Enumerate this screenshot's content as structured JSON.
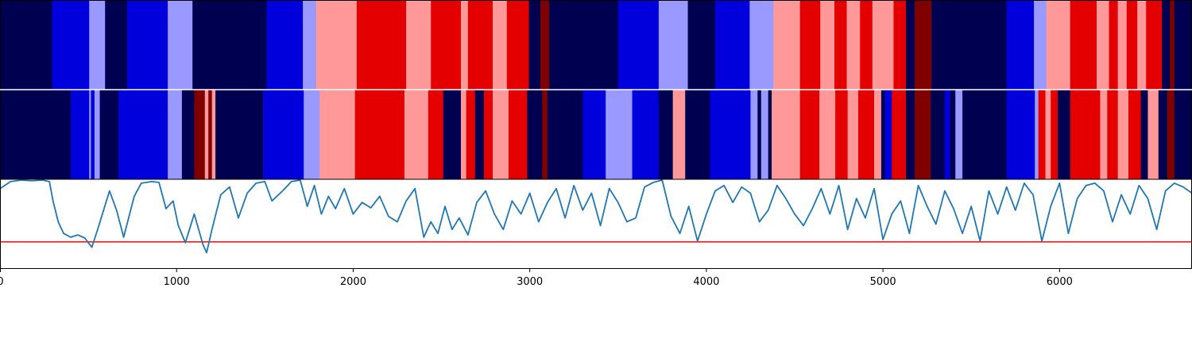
{
  "chart_data": [
    {
      "panel": "top-segmentation",
      "type": "heatmap",
      "x_range": [
        0,
        6750
      ],
      "palette": [
        "#000050",
        "#0000dd",
        "#9999ff",
        "#ff9999",
        "#e50000",
        "#800000"
      ],
      "segments": [
        {
          "x0": 0,
          "x1": 295,
          "state": 0
        },
        {
          "x0": 295,
          "x1": 505,
          "state": 1
        },
        {
          "x0": 505,
          "x1": 595,
          "state": 2
        },
        {
          "x0": 595,
          "x1": 720,
          "state": 0
        },
        {
          "x0": 720,
          "x1": 950,
          "state": 1
        },
        {
          "x0": 950,
          "x1": 1090,
          "state": 2
        },
        {
          "x0": 1090,
          "x1": 1510,
          "state": 0
        },
        {
          "x0": 1510,
          "x1": 1715,
          "state": 1
        },
        {
          "x0": 1715,
          "x1": 1790,
          "state": 2
        },
        {
          "x0": 1790,
          "x1": 2020,
          "state": 3
        },
        {
          "x0": 2020,
          "x1": 2300,
          "state": 4
        },
        {
          "x0": 2300,
          "x1": 2440,
          "state": 3
        },
        {
          "x0": 2440,
          "x1": 2610,
          "state": 4
        },
        {
          "x0": 2610,
          "x1": 2650,
          "state": 3
        },
        {
          "x0": 2650,
          "x1": 2790,
          "state": 4
        },
        {
          "x0": 2790,
          "x1": 2870,
          "state": 3
        },
        {
          "x0": 2870,
          "x1": 2995,
          "state": 4
        },
        {
          "x0": 2995,
          "x1": 3060,
          "state": 0
        },
        {
          "x0": 3060,
          "x1": 3110,
          "state": 5
        },
        {
          "x0": 3110,
          "x1": 3500,
          "state": 0
        },
        {
          "x0": 3500,
          "x1": 3730,
          "state": 1
        },
        {
          "x0": 3730,
          "x1": 3895,
          "state": 2
        },
        {
          "x0": 3895,
          "x1": 4050,
          "state": 0
        },
        {
          "x0": 4050,
          "x1": 4245,
          "state": 1
        },
        {
          "x0": 4245,
          "x1": 4380,
          "state": 2
        },
        {
          "x0": 4380,
          "x1": 4530,
          "state": 3
        },
        {
          "x0": 4530,
          "x1": 4645,
          "state": 4
        },
        {
          "x0": 4645,
          "x1": 4725,
          "state": 3
        },
        {
          "x0": 4725,
          "x1": 4795,
          "state": 4
        },
        {
          "x0": 4795,
          "x1": 4870,
          "state": 3
        },
        {
          "x0": 4870,
          "x1": 4940,
          "state": 4
        },
        {
          "x0": 4940,
          "x1": 5060,
          "state": 3
        },
        {
          "x0": 5060,
          "x1": 5130,
          "state": 4
        },
        {
          "x0": 5130,
          "x1": 5180,
          "state": 0
        },
        {
          "x0": 5180,
          "x1": 5275,
          "state": 5
        },
        {
          "x0": 5275,
          "x1": 5700,
          "state": 0
        },
        {
          "x0": 5700,
          "x1": 5855,
          "state": 1
        },
        {
          "x0": 5855,
          "x1": 5925,
          "state": 2
        },
        {
          "x0": 5925,
          "x1": 6060,
          "state": 3
        },
        {
          "x0": 6060,
          "x1": 6210,
          "state": 4
        },
        {
          "x0": 6210,
          "x1": 6280,
          "state": 3
        },
        {
          "x0": 6280,
          "x1": 6330,
          "state": 4
        },
        {
          "x0": 6330,
          "x1": 6380,
          "state": 3
        },
        {
          "x0": 6380,
          "x1": 6440,
          "state": 4
        },
        {
          "x0": 6440,
          "x1": 6490,
          "state": 3
        },
        {
          "x0": 6490,
          "x1": 6580,
          "state": 4
        },
        {
          "x0": 6580,
          "x1": 6625,
          "state": 0
        },
        {
          "x0": 6625,
          "x1": 6650,
          "state": 5
        },
        {
          "x0": 6650,
          "x1": 6750,
          "state": 0
        }
      ]
    },
    {
      "panel": "middle-segmentation",
      "type": "heatmap",
      "x_range": [
        0,
        6750
      ],
      "palette": [
        "#000050",
        "#0000dd",
        "#9999ff",
        "#ff9999",
        "#e50000",
        "#800000"
      ],
      "segments": [
        {
          "x0": 0,
          "x1": 400,
          "state": 0
        },
        {
          "x0": 400,
          "x1": 505,
          "state": 1
        },
        {
          "x0": 505,
          "x1": 515,
          "state": 2
        },
        {
          "x0": 515,
          "x1": 535,
          "state": 1
        },
        {
          "x0": 535,
          "x1": 565,
          "state": 2
        },
        {
          "x0": 565,
          "x1": 670,
          "state": 0
        },
        {
          "x0": 670,
          "x1": 705,
          "state": 1
        },
        {
          "x0": 705,
          "x1": 950,
          "state": 1
        },
        {
          "x0": 950,
          "x1": 1030,
          "state": 2
        },
        {
          "x0": 1030,
          "x1": 1100,
          "state": 0
        },
        {
          "x0": 1100,
          "x1": 1160,
          "state": 5
        },
        {
          "x0": 1160,
          "x1": 1180,
          "state": 3
        },
        {
          "x0": 1180,
          "x1": 1200,
          "state": 5
        },
        {
          "x0": 1200,
          "x1": 1220,
          "state": 3
        },
        {
          "x0": 1220,
          "x1": 1490,
          "state": 0
        },
        {
          "x0": 1490,
          "x1": 1720,
          "state": 1
        },
        {
          "x0": 1720,
          "x1": 1810,
          "state": 2
        },
        {
          "x0": 1810,
          "x1": 2010,
          "state": 3
        },
        {
          "x0": 2010,
          "x1": 2290,
          "state": 4
        },
        {
          "x0": 2290,
          "x1": 2425,
          "state": 3
        },
        {
          "x0": 2425,
          "x1": 2510,
          "state": 4
        },
        {
          "x0": 2510,
          "x1": 2610,
          "state": 0
        },
        {
          "x0": 2610,
          "x1": 2640,
          "state": 3
        },
        {
          "x0": 2640,
          "x1": 2690,
          "state": 4
        },
        {
          "x0": 2690,
          "x1": 2740,
          "state": 0
        },
        {
          "x0": 2740,
          "x1": 2790,
          "state": 4
        },
        {
          "x0": 2790,
          "x1": 2880,
          "state": 3
        },
        {
          "x0": 2880,
          "x1": 2985,
          "state": 4
        },
        {
          "x0": 2985,
          "x1": 3070,
          "state": 0
        },
        {
          "x0": 3070,
          "x1": 3100,
          "state": 5
        },
        {
          "x0": 3100,
          "x1": 3300,
          "state": 0
        },
        {
          "x0": 3300,
          "x1": 3430,
          "state": 1
        },
        {
          "x0": 3430,
          "x1": 3580,
          "state": 2
        },
        {
          "x0": 3580,
          "x1": 3730,
          "state": 1
        },
        {
          "x0": 3730,
          "x1": 3810,
          "state": 0
        },
        {
          "x0": 3810,
          "x1": 3880,
          "state": 3
        },
        {
          "x0": 3880,
          "x1": 4020,
          "state": 0
        },
        {
          "x0": 4020,
          "x1": 4250,
          "state": 1
        },
        {
          "x0": 4250,
          "x1": 4290,
          "state": 2
        },
        {
          "x0": 4290,
          "x1": 4310,
          "state": 0
        },
        {
          "x0": 4310,
          "x1": 4350,
          "state": 2
        },
        {
          "x0": 4350,
          "x1": 4370,
          "state": 0
        },
        {
          "x0": 4370,
          "x1": 4530,
          "state": 3
        },
        {
          "x0": 4530,
          "x1": 4640,
          "state": 4
        },
        {
          "x0": 4640,
          "x1": 4730,
          "state": 3
        },
        {
          "x0": 4730,
          "x1": 4800,
          "state": 4
        },
        {
          "x0": 4800,
          "x1": 4860,
          "state": 3
        },
        {
          "x0": 4860,
          "x1": 4950,
          "state": 4
        },
        {
          "x0": 4950,
          "x1": 4990,
          "state": 3
        },
        {
          "x0": 4990,
          "x1": 5010,
          "state": 0
        },
        {
          "x0": 5010,
          "x1": 5050,
          "state": 1
        },
        {
          "x0": 5050,
          "x1": 5130,
          "state": 4
        },
        {
          "x0": 5130,
          "x1": 5180,
          "state": 0
        },
        {
          "x0": 5180,
          "x1": 5270,
          "state": 5
        },
        {
          "x0": 5270,
          "x1": 5350,
          "state": 0
        },
        {
          "x0": 5350,
          "x1": 5380,
          "state": 1
        },
        {
          "x0": 5380,
          "x1": 5410,
          "state": 0
        },
        {
          "x0": 5410,
          "x1": 5450,
          "state": 2
        },
        {
          "x0": 5450,
          "x1": 5700,
          "state": 0
        },
        {
          "x0": 5700,
          "x1": 5860,
          "state": 1
        },
        {
          "x0": 5860,
          "x1": 5880,
          "state": 2
        },
        {
          "x0": 5880,
          "x1": 5920,
          "state": 4
        },
        {
          "x0": 5920,
          "x1": 5950,
          "state": 3
        },
        {
          "x0": 5950,
          "x1": 5990,
          "state": 4
        },
        {
          "x0": 5990,
          "x1": 6060,
          "state": 0
        },
        {
          "x0": 6060,
          "x1": 6230,
          "state": 4
        },
        {
          "x0": 6230,
          "x1": 6270,
          "state": 3
        },
        {
          "x0": 6270,
          "x1": 6330,
          "state": 4
        },
        {
          "x0": 6330,
          "x1": 6390,
          "state": 3
        },
        {
          "x0": 6390,
          "x1": 6460,
          "state": 4
        },
        {
          "x0": 6460,
          "x1": 6500,
          "state": 0
        },
        {
          "x0": 6500,
          "x1": 6560,
          "state": 3
        },
        {
          "x0": 6560,
          "x1": 6610,
          "state": 0
        },
        {
          "x0": 6610,
          "x1": 6650,
          "state": 5
        },
        {
          "x0": 6650,
          "x1": 6750,
          "state": 0
        }
      ]
    },
    {
      "panel": "signal",
      "type": "line",
      "line_color": "#1f77b4",
      "threshold": 0.19,
      "threshold_color": "#ff0000",
      "xlim": [
        0,
        6750
      ],
      "ylim": [
        -0.15,
        1.0
      ],
      "xticks": [
        0,
        1000,
        2000,
        3000,
        4000,
        5000,
        6000
      ],
      "xtick_labels": [
        "0",
        "1000",
        "2000",
        "3000",
        "4000",
        "5000",
        "6000"
      ],
      "x": [
        0,
        60,
        120,
        180,
        240,
        280,
        300,
        330,
        360,
        400,
        440,
        480,
        520,
        560,
        620,
        660,
        700,
        760,
        800,
        860,
        900,
        940,
        980,
        1010,
        1050,
        1100,
        1150,
        1170,
        1200,
        1250,
        1300,
        1350,
        1400,
        1450,
        1500,
        1540,
        1600,
        1650,
        1700,
        1740,
        1780,
        1820,
        1860,
        1900,
        1950,
        2000,
        2050,
        2100,
        2150,
        2200,
        2250,
        2300,
        2350,
        2400,
        2440,
        2480,
        2520,
        2560,
        2600,
        2650,
        2700,
        2750,
        2800,
        2850,
        2900,
        2950,
        3000,
        3050,
        3100,
        3150,
        3200,
        3250,
        3300,
        3350,
        3400,
        3450,
        3500,
        3550,
        3600,
        3650,
        3700,
        3750,
        3800,
        3850,
        3900,
        3950,
        4000,
        4050,
        4100,
        4150,
        4200,
        4250,
        4300,
        4350,
        4400,
        4450,
        4500,
        4550,
        4600,
        4650,
        4700,
        4750,
        4800,
        4850,
        4900,
        4950,
        5000,
        5050,
        5100,
        5150,
        5200,
        5250,
        5300,
        5350,
        5400,
        5450,
        5500,
        5550,
        5600,
        5650,
        5700,
        5750,
        5800,
        5850,
        5900,
        5950,
        6000,
        6050,
        6100,
        6150,
        6200,
        6250,
        6300,
        6350,
        6400,
        6450,
        6500,
        6550,
        6600,
        6650,
        6700,
        6750
      ],
      "y": [
        0.88,
        0.97,
        0.99,
        0.98,
        0.99,
        0.97,
        0.72,
        0.45,
        0.3,
        0.25,
        0.28,
        0.24,
        0.12,
        0.4,
        0.85,
        0.6,
        0.25,
        0.78,
        0.95,
        0.97,
        0.96,
        0.62,
        0.72,
        0.4,
        0.18,
        0.55,
        0.15,
        0.05,
        0.35,
        0.8,
        0.9,
        0.5,
        0.82,
        0.95,
        0.97,
        0.72,
        0.85,
        0.97,
        0.99,
        0.65,
        0.92,
        0.55,
        0.78,
        0.62,
        0.88,
        0.55,
        0.7,
        0.63,
        0.78,
        0.52,
        0.45,
        0.72,
        0.88,
        0.25,
        0.45,
        0.3,
        0.65,
        0.35,
        0.5,
        0.28,
        0.7,
        0.85,
        0.55,
        0.35,
        0.72,
        0.55,
        0.82,
        0.45,
        0.7,
        0.88,
        0.5,
        0.92,
        0.6,
        0.82,
        0.4,
        0.88,
        0.7,
        0.45,
        0.5,
        0.9,
        0.96,
        0.99,
        0.52,
        0.3,
        0.65,
        0.2,
        0.55,
        0.85,
        0.92,
        0.7,
        0.9,
        0.82,
        0.45,
        0.6,
        0.92,
        0.75,
        0.55,
        0.4,
        0.62,
        0.88,
        0.55,
        0.92,
        0.35,
        0.75,
        0.5,
        0.88,
        0.22,
        0.55,
        0.72,
        0.3,
        0.92,
        0.65,
        0.42,
        0.85,
        0.62,
        0.3,
        0.65,
        0.2,
        0.85,
        0.55,
        0.9,
        0.6,
        0.95,
        0.8,
        0.2,
        0.65,
        0.95,
        0.3,
        0.75,
        0.92,
        0.95,
        0.85,
        0.45,
        0.8,
        0.55,
        0.92,
        0.75,
        0.35,
        0.85,
        0.95,
        0.9,
        0.82
      ]
    }
  ]
}
